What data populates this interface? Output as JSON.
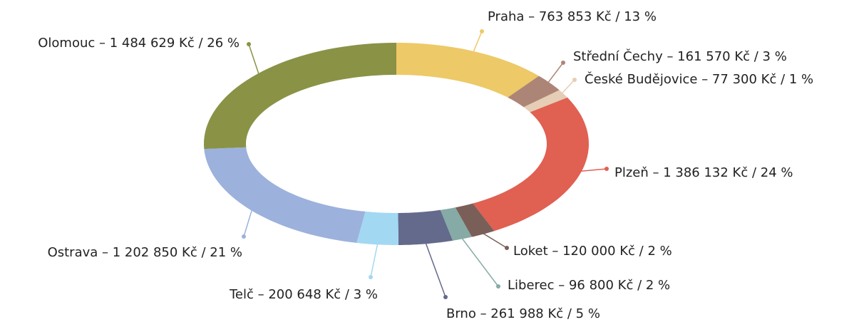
{
  "chart_data": {
    "type": "donut",
    "values": [
      763853,
      161570,
      77300,
      1386132,
      120000,
      96800,
      261988,
      200648,
      1202850,
      1484629
    ],
    "value_labels": [
      "Praha – 763 853 Kč / 13 %",
      "Střední Čechy – 161 570 Kč / 3 %",
      "České Budějovice – 77 300 Kč / 1 %",
      "Plzeň – 1 386 132 Kč / 24 %",
      "Loket – 120 000 Kč / 2 %",
      "Liberec – 96 800 Kč / 2 %",
      "Brno – 261 988 Kč / 5 %",
      "Telč – 200 648 Kč / 3 %",
      "Ostrava – 1 202 850 Kč / 21 %",
      "Olomouc – 1 484 629 Kč / 26 %"
    ],
    "colors": [
      "#edc967",
      "#ad8576",
      "#e6cdb5",
      "#e06052",
      "#7a5f58",
      "#86aaa6",
      "#646a8c",
      "#a2d8f2",
      "#9cb1dc",
      "#8a9246"
    ]
  }
}
